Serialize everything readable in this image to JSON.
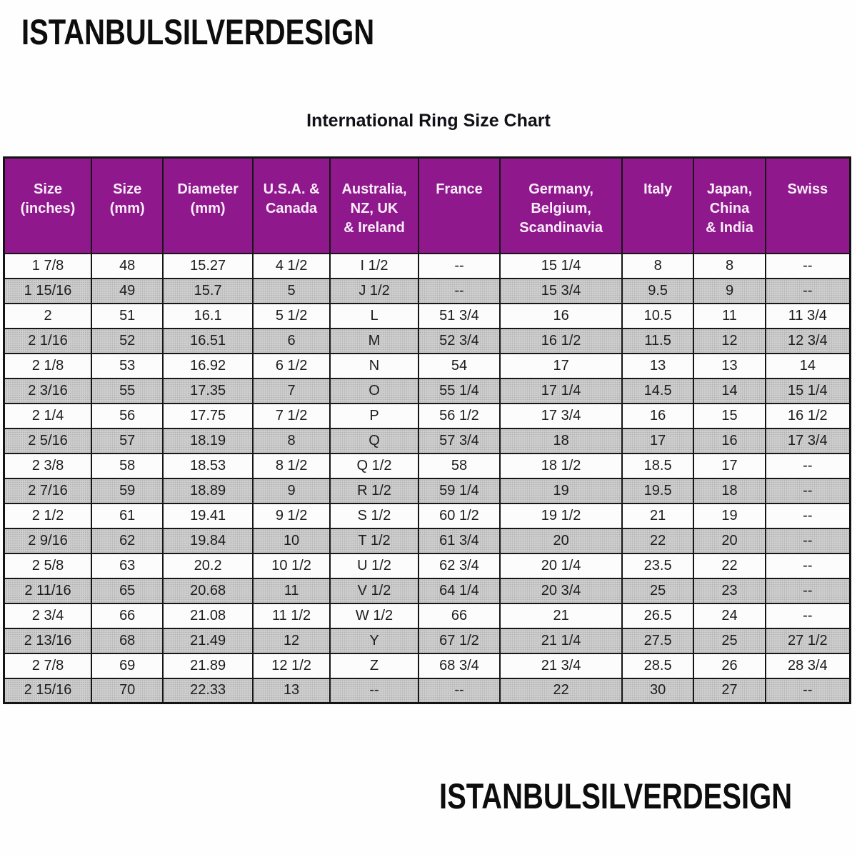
{
  "brand": {
    "top": "ISTANBULSILVERDESIGN",
    "bottom": "ISTANBULSILVERDESIGN"
  },
  "title": "International Ring Size Chart",
  "colors": {
    "header_bg": "#8e188c",
    "header_fg": "#fbeefa",
    "stripe_bg": "#d0d0d0",
    "border": "#161616",
    "brand_text": "#0d0d0d"
  },
  "chart_data": {
    "type": "table",
    "title": "International Ring Size Chart",
    "columns": [
      "Size\n(inches)",
      "Size\n(mm)",
      "Diameter\n(mm)",
      "U.S.A. &\nCanada",
      "Australia,\nNZ, UK\n& Ireland",
      "France",
      "Germany,\nBelgium,\nScandinavia",
      "Italy",
      "Japan,\nChina\n& India",
      "Swiss"
    ],
    "rows": [
      [
        "1 7/8",
        "48",
        "15.27",
        "4 1/2",
        "I 1/2",
        "--",
        "15 1/4",
        "8",
        "8",
        "--"
      ],
      [
        "1 15/16",
        "49",
        "15.7",
        "5",
        "J 1/2",
        "--",
        "15 3/4",
        "9.5",
        "9",
        "--"
      ],
      [
        "2",
        "51",
        "16.1",
        "5 1/2",
        "L",
        "51 3/4",
        "16",
        "10.5",
        "11",
        "11 3/4"
      ],
      [
        "2 1/16",
        "52",
        "16.51",
        "6",
        "M",
        "52 3/4",
        "16 1/2",
        "11.5",
        "12",
        "12 3/4"
      ],
      [
        "2 1/8",
        "53",
        "16.92",
        "6 1/2",
        "N",
        "54",
        "17",
        "13",
        "13",
        "14"
      ],
      [
        "2 3/16",
        "55",
        "17.35",
        "7",
        "O",
        "55 1/4",
        "17 1/4",
        "14.5",
        "14",
        "15 1/4"
      ],
      [
        "2 1/4",
        "56",
        "17.75",
        "7 1/2",
        "P",
        "56 1/2",
        "17 3/4",
        "16",
        "15",
        "16 1/2"
      ],
      [
        "2 5/16",
        "57",
        "18.19",
        "8",
        "Q",
        "57 3/4",
        "18",
        "17",
        "16",
        "17 3/4"
      ],
      [
        "2 3/8",
        "58",
        "18.53",
        "8 1/2",
        "Q 1/2",
        "58",
        "18 1/2",
        "18.5",
        "17",
        "--"
      ],
      [
        "2 7/16",
        "59",
        "18.89",
        "9",
        "R 1/2",
        "59 1/4",
        "19",
        "19.5",
        "18",
        "--"
      ],
      [
        "2 1/2",
        "61",
        "19.41",
        "9 1/2",
        "S 1/2",
        "60 1/2",
        "19 1/2",
        "21",
        "19",
        "--"
      ],
      [
        "2 9/16",
        "62",
        "19.84",
        "10",
        "T 1/2",
        "61 3/4",
        "20",
        "22",
        "20",
        "--"
      ],
      [
        "2 5/8",
        "63",
        "20.2",
        "10 1/2",
        "U 1/2",
        "62 3/4",
        "20 1/4",
        "23.5",
        "22",
        "--"
      ],
      [
        "2 11/16",
        "65",
        "20.68",
        "11",
        "V 1/2",
        "64 1/4",
        "20 3/4",
        "25",
        "23",
        "--"
      ],
      [
        "2 3/4",
        "66",
        "21.08",
        "11 1/2",
        "W 1/2",
        "66",
        "21",
        "26.5",
        "24",
        "--"
      ],
      [
        "2 13/16",
        "68",
        "21.49",
        "12",
        "Y",
        "67 1/2",
        "21 1/4",
        "27.5",
        "25",
        "27 1/2"
      ],
      [
        "2 7/8",
        "69",
        "21.89",
        "12 1/2",
        "Z",
        "68 3/4",
        "21 3/4",
        "28.5",
        "26",
        "28 3/4"
      ],
      [
        "2 15/16",
        "70",
        "22.33",
        "13",
        "--",
        "--",
        "22",
        "30",
        "27",
        "--"
      ]
    ],
    "layout": {
      "column_width_percents": [
        10.34,
        8.47,
        10.59,
        9.15,
        10.42,
        9.66,
        14.41,
        8.47,
        8.47,
        10.02
      ],
      "stripe_pattern": "alternating rows, first row white, even rows grey halftone",
      "header_style": "purple background, white text, top-aligned multi-line"
    }
  }
}
